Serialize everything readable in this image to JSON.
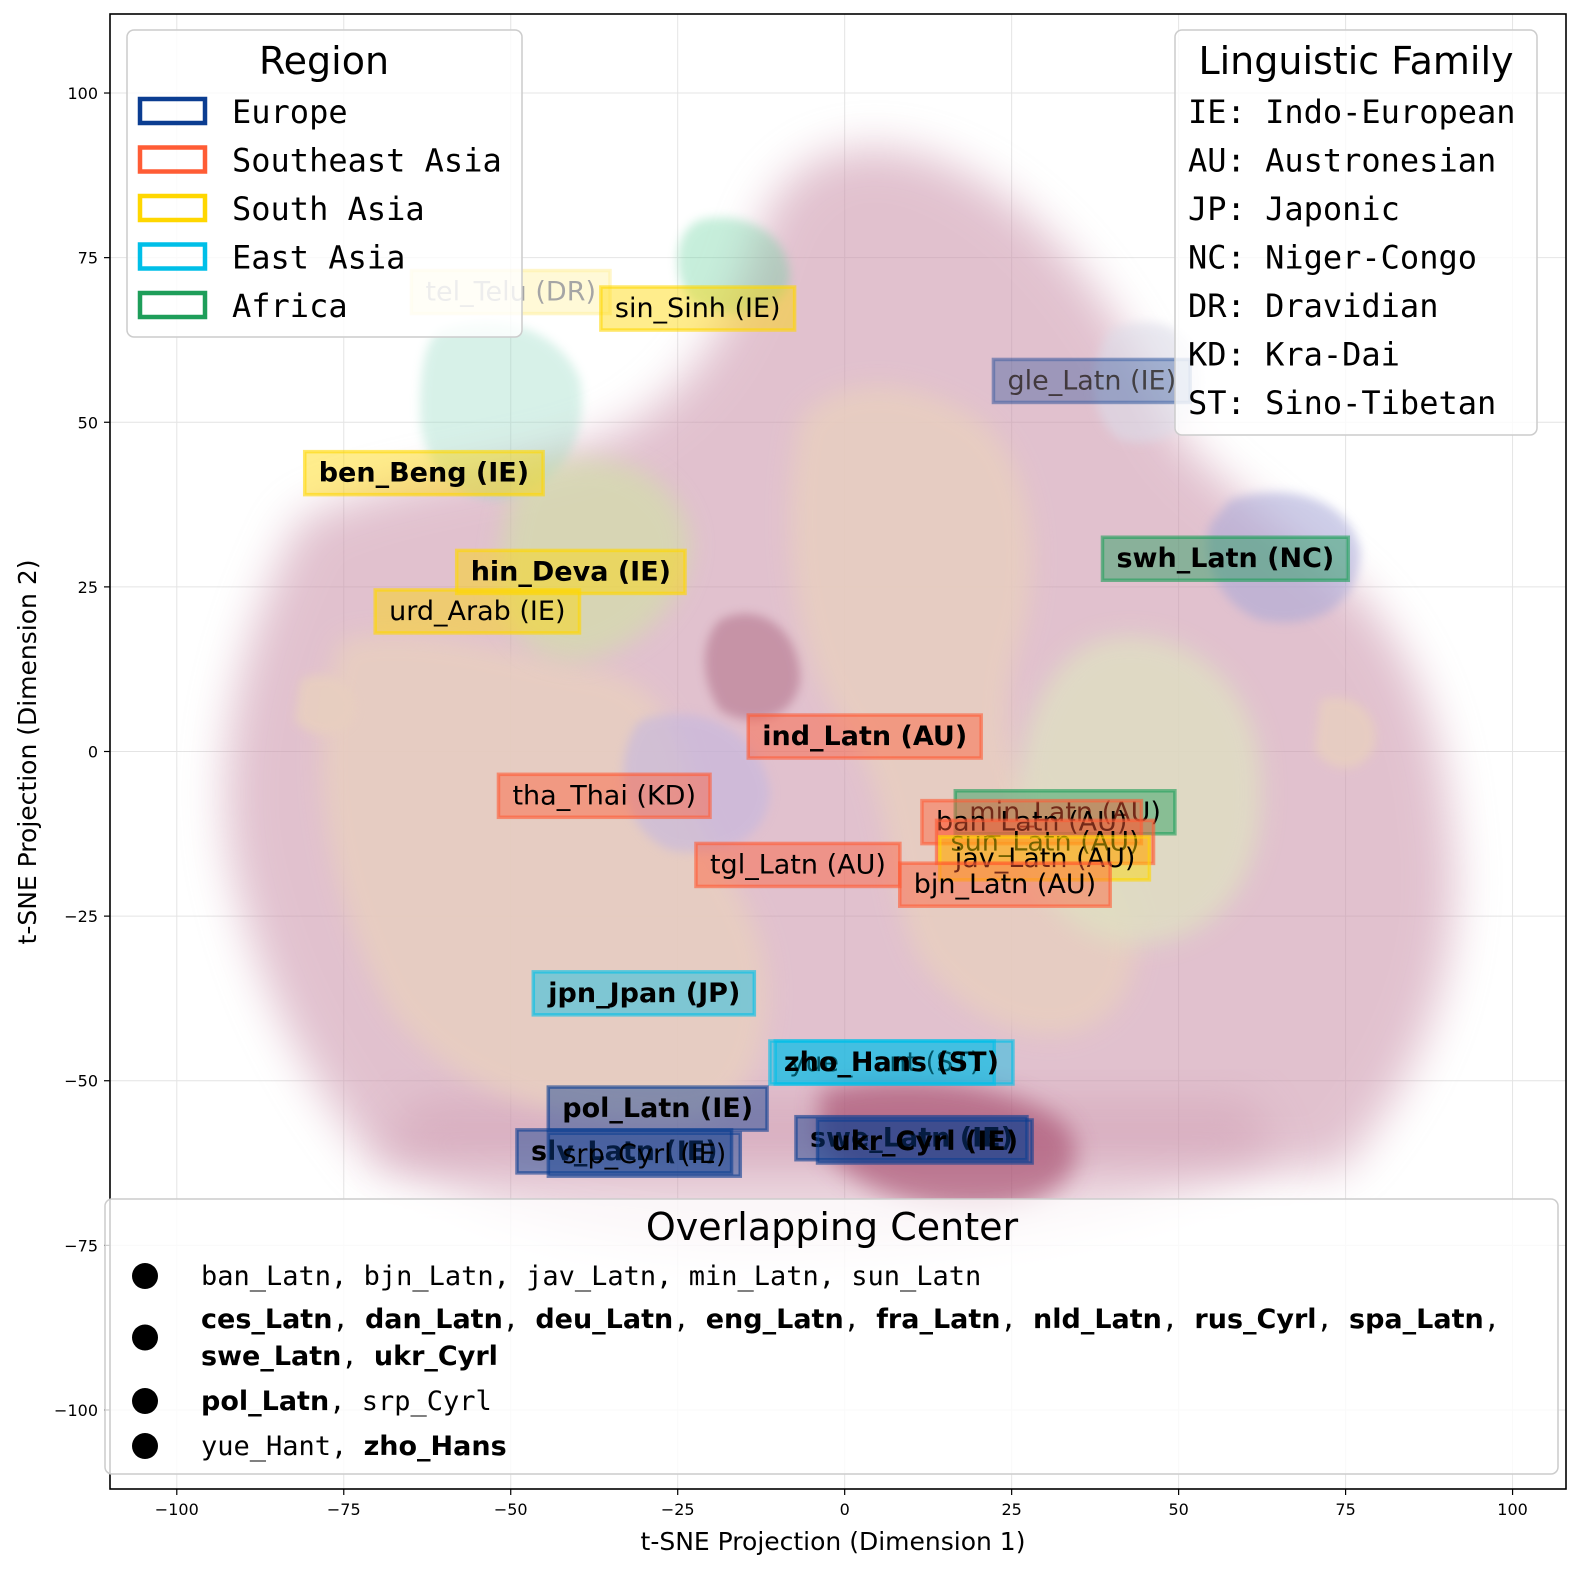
{
  "chart_data": {
    "type": "scatter",
    "title": "",
    "xlabel": "t-SNE Projection (Dimension 1)",
    "ylabel": "t-SNE Projection (Dimension 2)",
    "xlim": [
      -110,
      108
    ],
    "ylim": [
      -112,
      112
    ],
    "x_ticks": [
      -100,
      -75,
      -50,
      -25,
      0,
      25,
      50,
      75,
      100
    ],
    "y_ticks": [
      -100,
      -75,
      -50,
      -25,
      0,
      25,
      50,
      75,
      100
    ],
    "x_tick_labels": [
      "−100",
      "−75",
      "−50",
      "−25",
      "0",
      "25",
      "50",
      "75",
      "100"
    ],
    "y_tick_labels": [
      "−100",
      "−75",
      "−50",
      "−25",
      "0",
      "25",
      "50",
      "75",
      "100"
    ],
    "grid": true,
    "colors": {
      "Europe": "#0b3d91",
      "Southeast Asia": "#ff5c35",
      "South Asia": "#ffd700",
      "East Asia": "#00bfe8",
      "Africa": "#1e9e5a"
    },
    "labels": [
      {
        "text": "tel_Telu (DR)",
        "x": -50,
        "y": 70,
        "region": "South Asia",
        "bold": false,
        "alpha": 0.35
      },
      {
        "text": "sin_Sinh (IE)",
        "x": -22,
        "y": 67.5,
        "region": "South Asia",
        "bold": false,
        "alpha": 1
      },
      {
        "text": "gle_Latn (IE)",
        "x": 37,
        "y": 56.5,
        "region": "Europe",
        "bold": false,
        "alpha": 0.7
      },
      {
        "text": "ben_Beng (IE)",
        "x": -63,
        "y": 42.5,
        "region": "South Asia",
        "bold": true,
        "alpha": 1
      },
      {
        "text": "swh_Latn (NC)",
        "x": 57,
        "y": 29.5,
        "region": "Africa",
        "bold": true,
        "alpha": 1
      },
      {
        "text": "hin_Deva (IE)",
        "x": -41,
        "y": 27.5,
        "region": "South Asia",
        "bold": true,
        "alpha": 1
      },
      {
        "text": "urd_Arab (IE)",
        "x": -55,
        "y": 21.5,
        "region": "South Asia",
        "bold": false,
        "alpha": 1
      },
      {
        "text": "ind_Latn (AU)",
        "x": 3,
        "y": 2.5,
        "region": "Southeast Asia",
        "bold": true,
        "alpha": 1
      },
      {
        "text": "tha_Thai (KD)",
        "x": -36,
        "y": -6.5,
        "region": "Southeast Asia",
        "bold": false,
        "alpha": 1
      },
      {
        "text": "min_Latn (AU)",
        "x": 33,
        "y": -9,
        "region": "Africa",
        "bold": false,
        "alpha": 1
      },
      {
        "text": "ban_Latn (AU)",
        "x": 28,
        "y": -10.5,
        "region": "Southeast Asia",
        "bold": false,
        "alpha": 1
      },
      {
        "text": "sun_Latn (AU)",
        "x": 30,
        "y": -13.5,
        "region": "Southeast Asia",
        "bold": false,
        "alpha": 1
      },
      {
        "text": "jav_Latn (AU)",
        "x": 30,
        "y": -16,
        "region": "South Asia",
        "bold": false,
        "alpha": 1
      },
      {
        "text": "tgl_Latn (AU)",
        "x": -7,
        "y": -17,
        "region": "Southeast Asia",
        "bold": false,
        "alpha": 1
      },
      {
        "text": "bjn_Latn (AU)",
        "x": 24,
        "y": -20,
        "region": "Southeast Asia",
        "bold": false,
        "alpha": 1
      },
      {
        "text": "jpn_Jpan (JP)",
        "x": -30,
        "y": -36.5,
        "region": "East Asia",
        "bold": true,
        "alpha": 1
      },
      {
        "text": "yue_Hant (ST)",
        "x": 6,
        "y": -47,
        "region": "East Asia",
        "bold": false,
        "alpha": 1
      },
      {
        "text": "zho_Hans (ST)",
        "x": 7,
        "y": -47,
        "region": "East Asia",
        "bold": true,
        "alpha": 1
      },
      {
        "text": "pol_Latn (IE)",
        "x": -28,
        "y": -54,
        "region": "Europe",
        "bold": true,
        "alpha": 1
      },
      {
        "text": "swe_Latn (IE)",
        "x": 10,
        "y": -58.5,
        "region": "Europe",
        "bold": true,
        "alpha": 1
      },
      {
        "text": "ukr_Cyrl (IE)",
        "x": 12,
        "y": -59,
        "region": "Europe",
        "bold": true,
        "alpha": 1
      },
      {
        "text": "slv_Latn (IE)",
        "x": -33,
        "y": -60.5,
        "region": "Europe",
        "bold": true,
        "alpha": 1
      },
      {
        "text": "srp_Cyrl (IE)",
        "x": -30,
        "y": -61,
        "region": "Europe",
        "bold": false,
        "alpha": 1
      }
    ],
    "legend_region": {
      "title": "Region",
      "placement": "top-left",
      "entries": [
        "Europe",
        "Southeast Asia",
        "South Asia",
        "East Asia",
        "Africa"
      ]
    },
    "legend_family": {
      "title": "Linguistic Family",
      "placement": "top-right",
      "entries": [
        "IE: Indo-European",
        "AU: Austronesian",
        "JP: Japonic",
        "NC: Niger-Congo",
        "DR: Dravidian",
        "KD: Kra-Dai",
        "ST: Sino-Tibetan"
      ]
    },
    "overlap_legend": {
      "title": "Overlapping Center",
      "placement": "bottom",
      "groups": [
        [
          [
            {
              "t": "ban_Latn",
              "b": false
            },
            {
              "t": "bjn_Latn",
              "b": false
            },
            {
              "t": "jav_Latn",
              "b": false
            },
            {
              "t": "min_Latn",
              "b": false
            },
            {
              "t": "sun_Latn",
              "b": false
            }
          ]
        ],
        [
          [
            {
              "t": "ces_Latn",
              "b": true
            },
            {
              "t": "dan_Latn",
              "b": true
            },
            {
              "t": "deu_Latn",
              "b": true
            },
            {
              "t": "eng_Latn",
              "b": true
            },
            {
              "t": "fra_Latn",
              "b": true
            },
            {
              "t": "nld_Latn",
              "b": true
            },
            {
              "t": "rus_Cyrl",
              "b": true
            },
            {
              "t": "spa_Latn",
              "b": true
            }
          ],
          [
            {
              "t": "swe_Latn",
              "b": true
            },
            {
              "t": "ukr_Cyrl",
              "b": true
            }
          ]
        ],
        [
          [
            {
              "t": "pol_Latn",
              "b": true
            },
            {
              "t": "srp_Cyrl",
              "b": false
            }
          ]
        ],
        [
          [
            {
              "t": "yue_Hant",
              "b": false
            },
            {
              "t": "zho_Hans",
              "b": true
            }
          ]
        ]
      ]
    }
  }
}
